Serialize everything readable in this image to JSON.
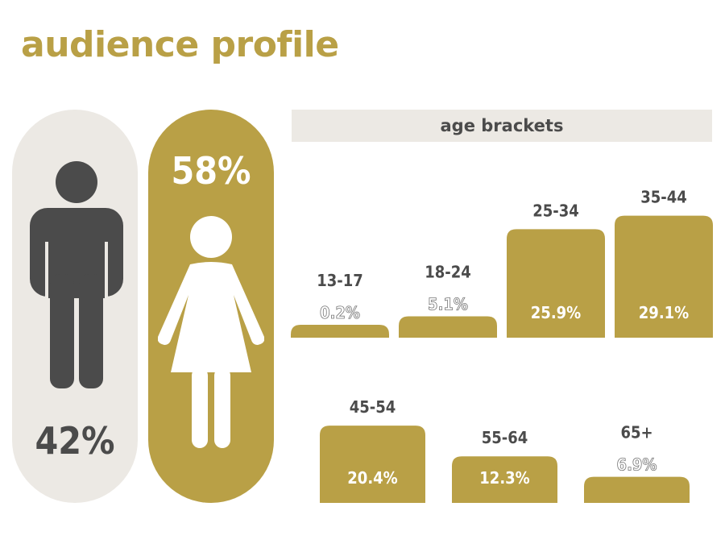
{
  "title": "audience profile",
  "gender": {
    "male_pct": "42%",
    "female_pct": "58%",
    "male_icon": "male-person-icon",
    "female_icon": "female-person-icon"
  },
  "colors": {
    "gold": "#b9a046",
    "light": "#ece9e4",
    "dark": "#4b4b4b"
  },
  "chart_data": {
    "type": "bar",
    "title": "age brackets",
    "categories": [
      "13-17",
      "18-24",
      "25-34",
      "35-44",
      "45-54",
      "55-64",
      "65+"
    ],
    "values": [
      0.2,
      5.1,
      25.9,
      29.1,
      20.4,
      12.3,
      6.9
    ],
    "value_labels": [
      "0.2%",
      "5.1%",
      "25.9%",
      "29.1%",
      "20.4%",
      "12.3%",
      "6.9%"
    ],
    "unit": "%"
  }
}
